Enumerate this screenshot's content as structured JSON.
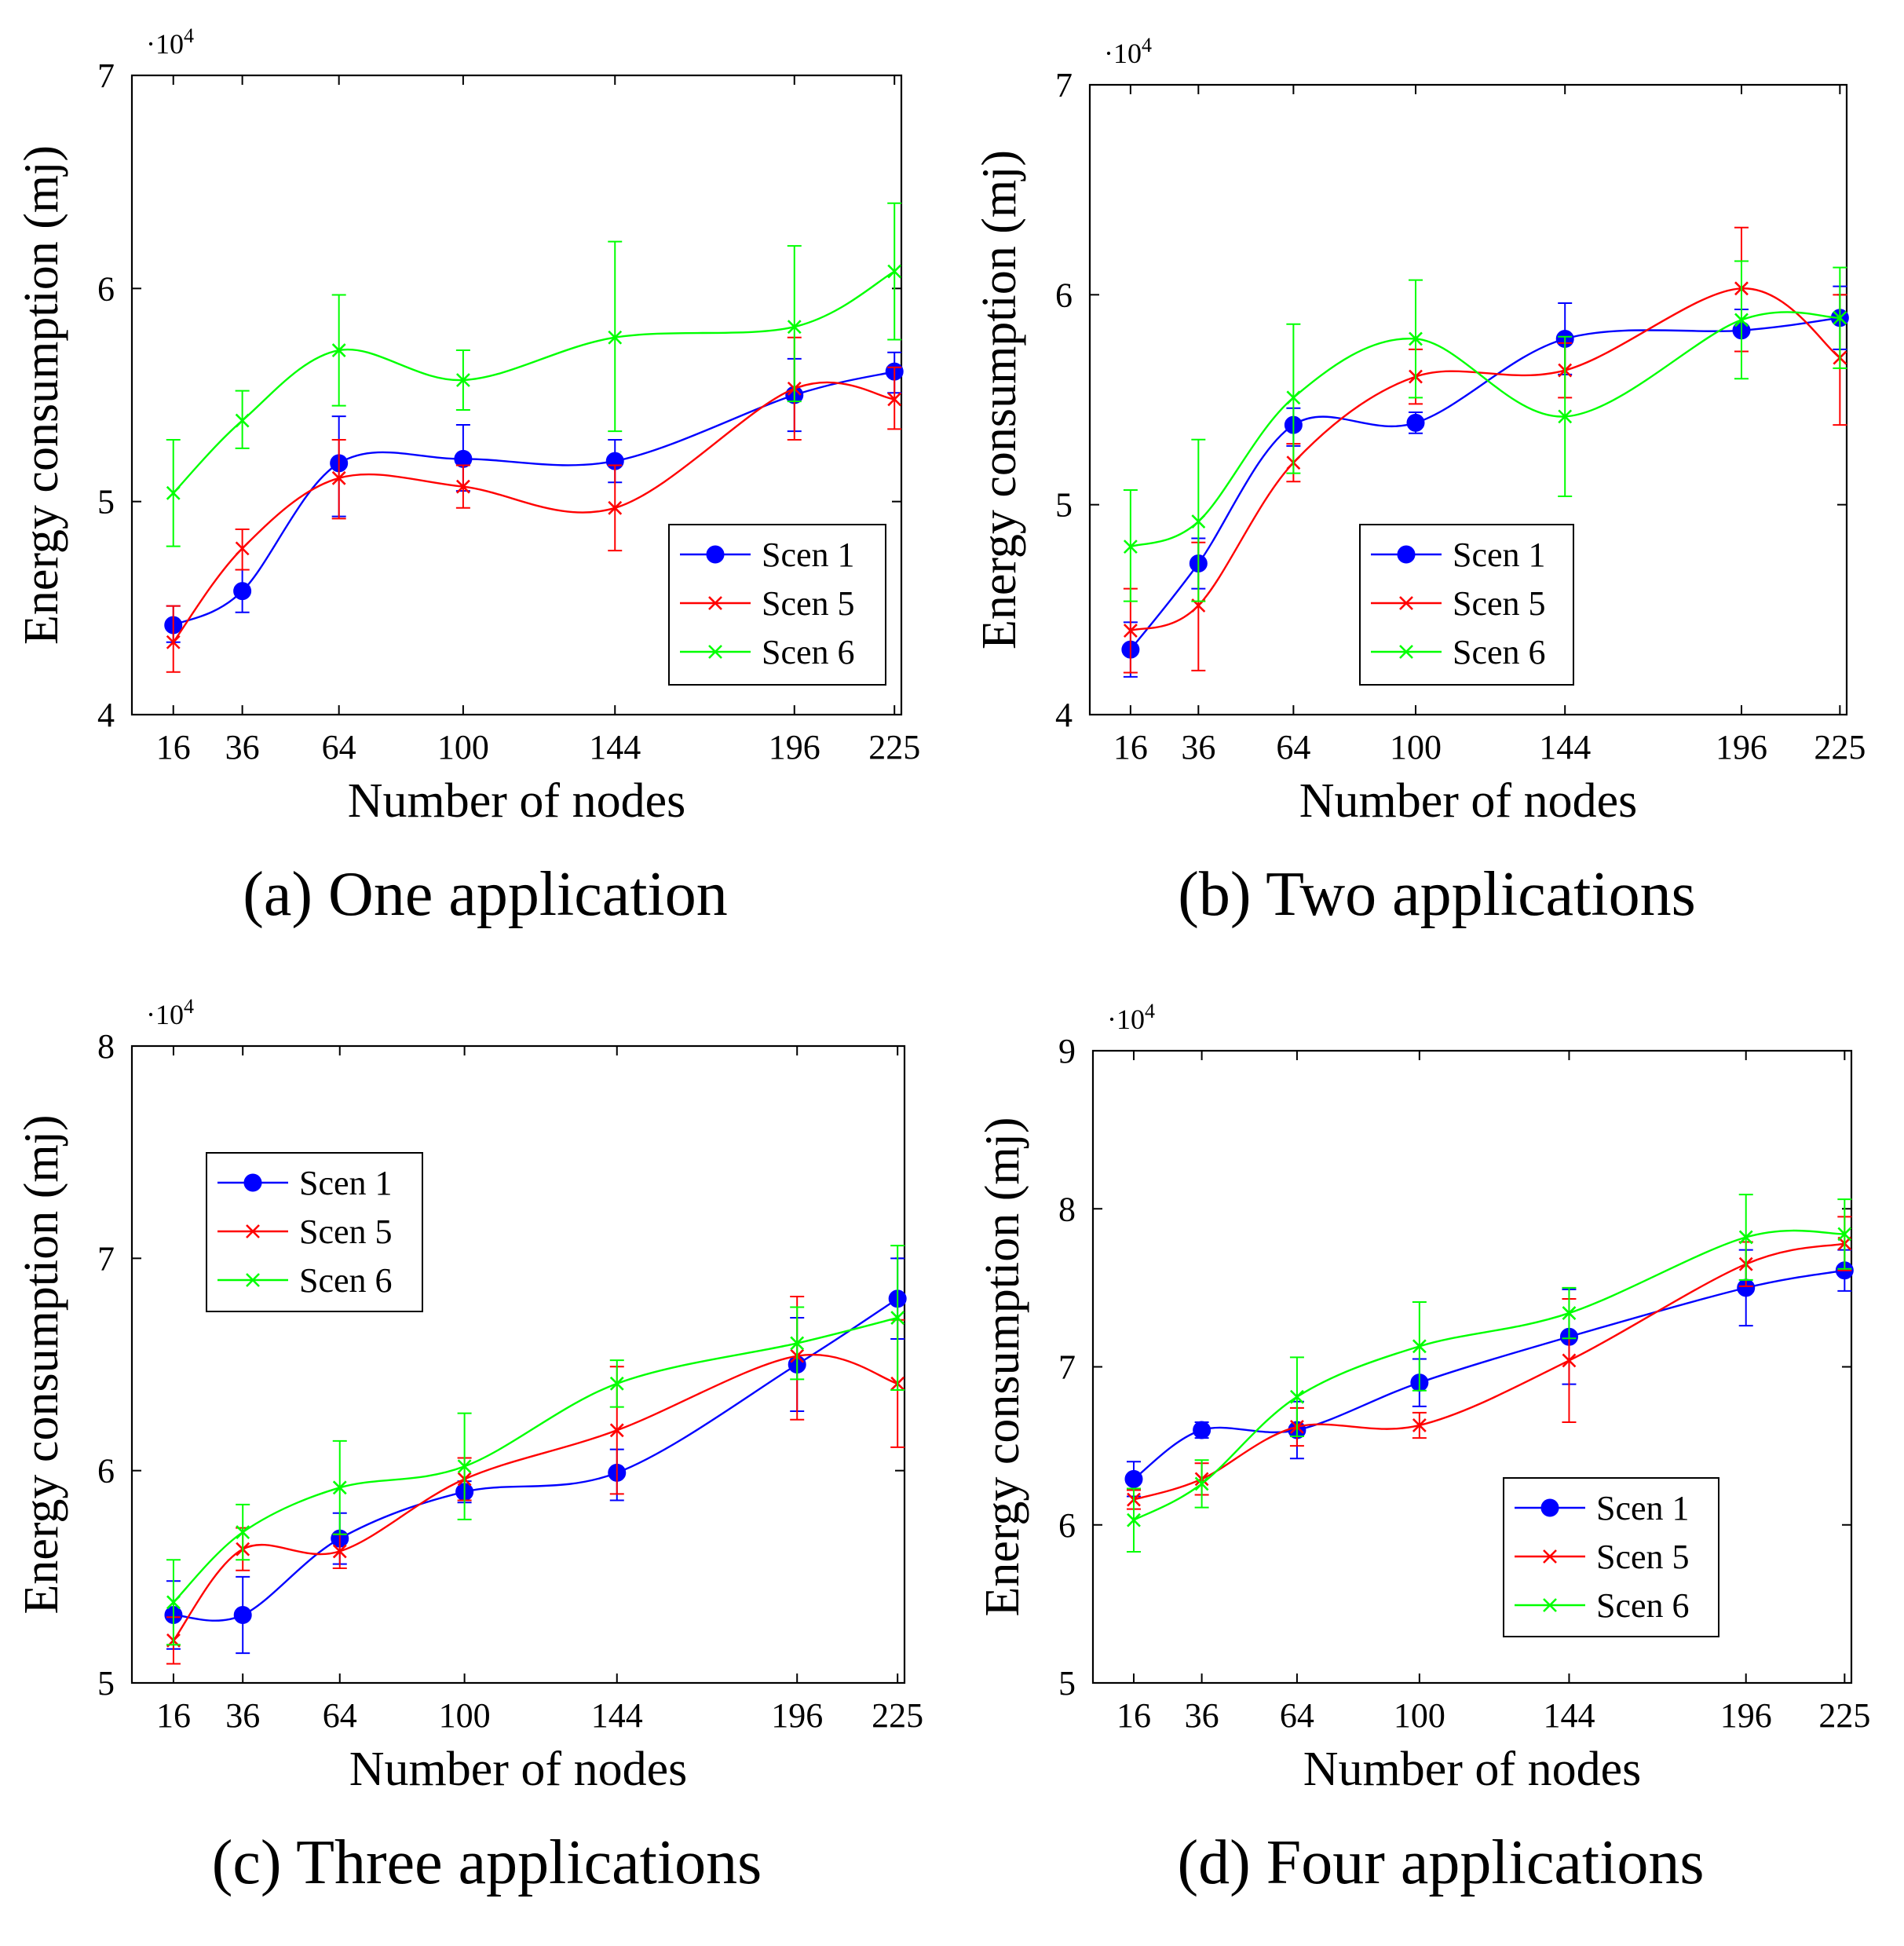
{
  "figure": {
    "x_label": "Number of nodes",
    "y_label": "Energy consumption (mj)",
    "y_scale_prefix": "·10",
    "y_scale_exponent": "4",
    "legend_labels": [
      "Scen 1",
      "Scen 5",
      "Scen 6"
    ]
  },
  "series_styles": [
    {
      "name": "Scen 1",
      "color": "#0000ff",
      "marker": "circle"
    },
    {
      "name": "Scen 5",
      "color": "#ff0000",
      "marker": "x"
    },
    {
      "name": "Scen 6",
      "color": "#00ff00",
      "marker": "x"
    }
  ],
  "chart_data": [
    {
      "type": "line",
      "caption": "(a) One application",
      "title": "",
      "xlabel": "Number of nodes",
      "ylabel": "Energy consumption (mj)",
      "x": [
        16,
        36,
        64,
        100,
        144,
        196,
        225
      ],
      "xlim": [
        4,
        227
      ],
      "ylim": [
        4,
        7
      ],
      "yticks": [
        4,
        5,
        6,
        7
      ],
      "y_multiplier": "10^4",
      "legend": "bottom-right",
      "series": [
        {
          "name": "Scen 1",
          "values": [
            4.42,
            4.58,
            5.18,
            5.2,
            5.19,
            5.5,
            5.61
          ],
          "err_low": [
            0.08,
            0.1,
            0.25,
            0.15,
            0.1,
            0.17,
            0.1
          ],
          "err_high": [
            0.09,
            0.1,
            0.22,
            0.16,
            0.1,
            0.17,
            0.09
          ]
        },
        {
          "name": "Scen 5",
          "values": [
            4.34,
            4.78,
            5.11,
            5.07,
            4.97,
            5.53,
            5.48
          ],
          "err_low": [
            0.14,
            0.1,
            0.19,
            0.1,
            0.2,
            0.24,
            0.14
          ],
          "err_high": [
            0.17,
            0.09,
            0.18,
            0.1,
            0.2,
            0.24,
            0.15
          ]
        },
        {
          "name": "Scen 6",
          "values": [
            5.04,
            5.38,
            5.71,
            5.57,
            5.77,
            5.82,
            6.08
          ],
          "err_low": [
            0.25,
            0.13,
            0.26,
            0.14,
            0.44,
            0.35,
            0.32
          ],
          "err_high": [
            0.25,
            0.14,
            0.26,
            0.14,
            0.45,
            0.38,
            0.32
          ]
        }
      ]
    },
    {
      "type": "line",
      "caption": "(b) Two applications",
      "title": "",
      "xlabel": "Number of nodes",
      "ylabel": "Energy consumption (mj)",
      "x": [
        16,
        36,
        64,
        100,
        144,
        196,
        225
      ],
      "xlim": [
        4,
        227
      ],
      "ylim": [
        4,
        7
      ],
      "yticks": [
        4,
        5,
        6,
        7
      ],
      "y_multiplier": "10^4",
      "legend": "bottom-left",
      "series": [
        {
          "name": "Scen 1",
          "values": [
            4.31,
            4.72,
            5.38,
            5.39,
            5.79,
            5.83,
            5.89
          ],
          "err_low": [
            0.13,
            0.12,
            0.1,
            0.05,
            0.17,
            0.1,
            0.15
          ],
          "err_high": [
            0.13,
            0.12,
            0.08,
            0.05,
            0.17,
            0.1,
            0.15
          ]
        },
        {
          "name": "Scen 5",
          "values": [
            4.4,
            4.52,
            5.2,
            5.61,
            5.64,
            6.03,
            5.7
          ],
          "err_low": [
            0.2,
            0.31,
            0.09,
            0.13,
            0.13,
            0.3,
            0.32
          ],
          "err_high": [
            0.2,
            0.3,
            0.09,
            0.13,
            0.13,
            0.29,
            0.3
          ]
        },
        {
          "name": "Scen 6",
          "values": [
            4.8,
            4.92,
            5.51,
            5.79,
            5.42,
            5.88,
            5.89
          ],
          "err_low": [
            0.26,
            0.38,
            0.36,
            0.28,
            0.38,
            0.28,
            0.24
          ],
          "err_high": [
            0.27,
            0.39,
            0.35,
            0.28,
            0.38,
            0.28,
            0.24
          ]
        }
      ]
    },
    {
      "type": "line",
      "caption": "(c) Three applications",
      "title": "",
      "xlabel": "Number of nodes",
      "ylabel": "Energy consumption (mj)",
      "x": [
        16,
        36,
        64,
        100,
        144,
        196,
        225
      ],
      "xlim": [
        4,
        227
      ],
      "ylim": [
        5,
        8
      ],
      "yticks": [
        5,
        6,
        7,
        8
      ],
      "y_multiplier": "10^4",
      "legend": "top-left",
      "series": [
        {
          "name": "Scen 1",
          "values": [
            5.32,
            5.32,
            5.68,
            5.9,
            5.99,
            6.5,
            6.81
          ],
          "err_low": [
            0.16,
            0.18,
            0.12,
            0.05,
            0.13,
            0.22,
            0.19
          ],
          "err_high": [
            0.16,
            0.18,
            0.12,
            0.05,
            0.11,
            0.22,
            0.19
          ]
        },
        {
          "name": "Scen 5",
          "values": [
            5.2,
            5.63,
            5.62,
            5.96,
            6.19,
            6.54,
            6.41
          ],
          "err_low": [
            0.11,
            0.1,
            0.08,
            0.1,
            0.3,
            0.3,
            0.3
          ],
          "err_high": [
            0.11,
            0.1,
            0.08,
            0.1,
            0.3,
            0.28,
            0.3
          ]
        },
        {
          "name": "Scen 6",
          "values": [
            5.38,
            5.71,
            5.92,
            6.02,
            6.41,
            6.6,
            6.72
          ],
          "err_low": [
            0.2,
            0.13,
            0.22,
            0.25,
            0.11,
            0.17,
            0.34
          ],
          "err_high": [
            0.2,
            0.13,
            0.22,
            0.25,
            0.11,
            0.17,
            0.34
          ]
        }
      ]
    },
    {
      "type": "line",
      "caption": "(d) Four applications",
      "title": "",
      "xlabel": "Number of nodes",
      "ylabel": "Energy consumption (mj)",
      "x": [
        16,
        36,
        64,
        100,
        144,
        196,
        225
      ],
      "xlim": [
        4,
        227
      ],
      "ylim": [
        5,
        9
      ],
      "yticks": [
        5,
        6,
        7,
        8,
        9
      ],
      "y_multiplier": "10^4",
      "legend": "bottom-right",
      "series": [
        {
          "name": "Scen 1",
          "values": [
            6.29,
            6.6,
            6.6,
            6.9,
            7.19,
            7.5,
            7.61
          ],
          "err_low": [
            0.11,
            0.05,
            0.18,
            0.15,
            0.3,
            0.24,
            0.13
          ],
          "err_high": [
            0.11,
            0.05,
            0.18,
            0.15,
            0.3,
            0.24,
            0.13
          ]
        },
        {
          "name": "Scen 5",
          "values": [
            6.16,
            6.29,
            6.62,
            6.63,
            7.04,
            7.65,
            7.78
          ],
          "err_low": [
            0.06,
            0.1,
            0.12,
            0.08,
            0.39,
            0.14,
            0.17
          ],
          "err_high": [
            0.06,
            0.1,
            0.12,
            0.08,
            0.39,
            0.14,
            0.17
          ]
        },
        {
          "name": "Scen 6",
          "values": [
            6.03,
            6.26,
            6.81,
            7.13,
            7.34,
            7.82,
            7.84
          ],
          "err_low": [
            0.2,
            0.15,
            0.25,
            0.28,
            0.16,
            0.27,
            0.22
          ],
          "err_high": [
            0.2,
            0.15,
            0.25,
            0.28,
            0.16,
            0.27,
            0.22
          ]
        }
      ]
    }
  ]
}
